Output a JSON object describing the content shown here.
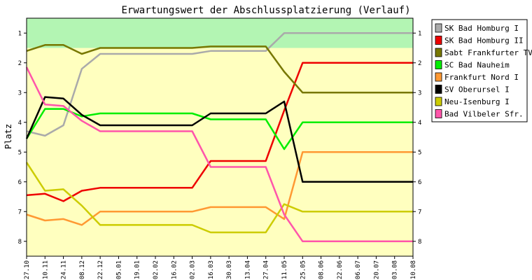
{
  "chart_data": {
    "type": "line",
    "title": "Erwartungswert der Abschlussplatzierung (Verlauf)",
    "ylabel": "Platz",
    "xlabel": "",
    "ylim": [
      8.5,
      0.5
    ],
    "yticks": [
      1,
      2,
      3,
      4,
      5,
      6,
      7,
      8
    ],
    "y_inverted": true,
    "background_bands": [
      {
        "from": 0.5,
        "to": 1.5,
        "color": "#b3f5b3"
      },
      {
        "from": 1.5,
        "to": 8.5,
        "color": "#ffffbf"
      }
    ],
    "x": [
      "27.10",
      "10.11",
      "24.11",
      "08.12",
      "22.12",
      "05.01",
      "19.01",
      "02.02",
      "16.02",
      "02.03",
      "16.03",
      "30.03",
      "13.04",
      "27.04",
      "11.05",
      "25.05",
      "08.06",
      "22.06",
      "06.07",
      "20.07",
      "03.08",
      "10.08"
    ],
    "legend_position": "right",
    "series": [
      {
        "name": "SK Bad Homburg I",
        "color": "#aaaaaa",
        "values": [
          4.3,
          4.45,
          4.1,
          2.2,
          1.7,
          1.7,
          1.7,
          1.7,
          1.7,
          1.7,
          1.6,
          1.6,
          1.6,
          1.6,
          1.0,
          1.0,
          1.0,
          1.0,
          1.0,
          1.0,
          1.0,
          1.0
        ]
      },
      {
        "name": "SK Bad Homburg II",
        "color": "#ee0000",
        "values": [
          6.45,
          6.4,
          6.65,
          6.3,
          6.2,
          6.2,
          6.2,
          6.2,
          6.2,
          6.2,
          5.3,
          5.3,
          5.3,
          5.3,
          3.6,
          2.0,
          2.0,
          2.0,
          2.0,
          2.0,
          2.0,
          2.0
        ]
      },
      {
        "name": "Sabt Frankfurter TV",
        "color": "#777700",
        "values": [
          1.6,
          1.4,
          1.4,
          1.7,
          1.5,
          1.5,
          1.5,
          1.5,
          1.5,
          1.5,
          1.45,
          1.45,
          1.45,
          1.45,
          2.3,
          3.0,
          3.0,
          3.0,
          3.0,
          3.0,
          3.0,
          3.0
        ]
      },
      {
        "name": "SC Bad Nauheim",
        "color": "#00ee00",
        "values": [
          4.55,
          3.55,
          3.55,
          3.8,
          3.7,
          3.7,
          3.7,
          3.7,
          3.7,
          3.7,
          3.9,
          3.9,
          3.9,
          3.9,
          4.9,
          4.0,
          4.0,
          4.0,
          4.0,
          4.0,
          4.0,
          4.0
        ]
      },
      {
        "name": "Frankfurt Nord I",
        "color": "#ff9933",
        "values": [
          7.1,
          7.3,
          7.25,
          7.45,
          7.0,
          7.0,
          7.0,
          7.0,
          7.0,
          7.0,
          6.85,
          6.85,
          6.85,
          6.85,
          7.25,
          5.0,
          5.0,
          5.0,
          5.0,
          5.0,
          5.0,
          5.0
        ]
      },
      {
        "name": "SV Oberursel I",
        "color": "#000000",
        "values": [
          4.55,
          3.15,
          3.2,
          3.75,
          4.1,
          4.1,
          4.1,
          4.1,
          4.1,
          4.1,
          3.7,
          3.7,
          3.7,
          3.7,
          3.3,
          6.0,
          6.0,
          6.0,
          6.0,
          6.0,
          6.0,
          6.0
        ]
      },
      {
        "name": "Neu-Isenburg I",
        "color": "#cccc00",
        "values": [
          5.35,
          6.3,
          6.25,
          6.8,
          7.45,
          7.45,
          7.45,
          7.45,
          7.45,
          7.45,
          7.7,
          7.7,
          7.7,
          7.7,
          6.75,
          7.0,
          7.0,
          7.0,
          7.0,
          7.0,
          7.0,
          7.0
        ]
      },
      {
        "name": "Bad Vilbeler Sfr.",
        "color": "#ff55aa",
        "values": [
          2.15,
          3.4,
          3.45,
          3.95,
          4.3,
          4.3,
          4.3,
          4.3,
          4.3,
          4.3,
          5.5,
          5.5,
          5.5,
          5.5,
          7.1,
          8.0,
          8.0,
          8.0,
          8.0,
          8.0,
          8.0,
          8.0
        ]
      }
    ]
  }
}
